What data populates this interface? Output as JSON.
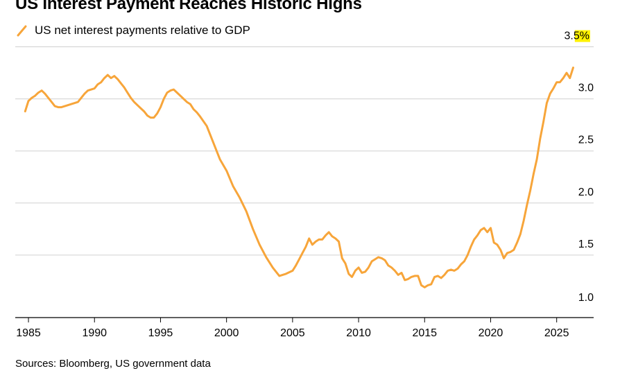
{
  "header": {
    "title": "US Interest Payment Reaches Historic Highs"
  },
  "footer": {
    "source": "Sources: Bloomberg, US government data"
  },
  "colors": {
    "line": "#f7a53a",
    "grid": "#d0d0d0",
    "highlight": "#fff200"
  },
  "chart_data": {
    "type": "line",
    "title": "US Interest Payment Reaches Historic Highs",
    "xlabel": "",
    "ylabel": "",
    "xlim": [
      1984,
      2027.8
    ],
    "ylim": [
      0.9,
      3.55
    ],
    "yaxis_position": "right",
    "grid": true,
    "legend": "top-left",
    "x_ticks": [
      1985,
      1990,
      1995,
      2000,
      2005,
      2010,
      2015,
      2020,
      2025
    ],
    "x_tick_labels": [
      "1985",
      "1990",
      "1995",
      "2000",
      "2005",
      "2010",
      "2015",
      "2020",
      "2025"
    ],
    "y_ticks": [
      1.0,
      1.5,
      2.0,
      2.5,
      3.0,
      3.5
    ],
    "y_tick_labels": [
      "1.0",
      "1.5",
      "2.0",
      "2.5",
      "3.0",
      "3.5%"
    ],
    "series": [
      {
        "name": "US net interest payments relative to GDP",
        "x": [
          1984.75,
          1985.0,
          1985.25,
          1985.5,
          1985.75,
          1986.0,
          1986.25,
          1986.5,
          1986.75,
          1987.0,
          1987.25,
          1987.5,
          1987.75,
          1988.0,
          1988.25,
          1988.5,
          1988.75,
          1989.0,
          1989.25,
          1989.5,
          1989.75,
          1990.0,
          1990.25,
          1990.5,
          1990.75,
          1991.0,
          1991.25,
          1991.5,
          1991.75,
          1992.0,
          1992.25,
          1992.5,
          1992.75,
          1993.0,
          1993.25,
          1993.5,
          1993.75,
          1994.0,
          1994.25,
          1994.5,
          1994.75,
          1995.0,
          1995.25,
          1995.5,
          1995.75,
          1996.0,
          1996.25,
          1996.5,
          1996.75,
          1997.0,
          1997.25,
          1997.5,
          1997.75,
          1998.0,
          1998.5,
          1999.0,
          1999.5,
          2000.0,
          2000.5,
          2001.0,
          2001.5,
          2002.0,
          2002.5,
          2003.0,
          2003.5,
          2004.0,
          2004.5,
          2005.0,
          2005.25,
          2005.5,
          2005.75,
          2006.0,
          2006.25,
          2006.5,
          2006.75,
          2007.0,
          2007.25,
          2007.5,
          2007.75,
          2008.0,
          2008.25,
          2008.5,
          2008.75,
          2009.0,
          2009.25,
          2009.5,
          2009.75,
          2010.0,
          2010.25,
          2010.5,
          2010.75,
          2011.0,
          2011.25,
          2011.5,
          2011.75,
          2012.0,
          2012.25,
          2012.5,
          2012.75,
          2013.0,
          2013.25,
          2013.5,
          2013.75,
          2014.0,
          2014.25,
          2014.5,
          2014.75,
          2015.0,
          2015.25,
          2015.5,
          2015.75,
          2016.0,
          2016.25,
          2016.5,
          2016.75,
          2017.0,
          2017.25,
          2017.5,
          2017.75,
          2018.0,
          2018.25,
          2018.5,
          2018.75,
          2019.0,
          2019.25,
          2019.5,
          2019.75,
          2020.0,
          2020.25,
          2020.5,
          2020.75,
          2021.0,
          2021.25,
          2021.5,
          2021.75,
          2022.0,
          2022.25,
          2022.5,
          2022.75,
          2023.0,
          2023.25,
          2023.5,
          2023.75,
          2024.0,
          2024.25,
          2024.5,
          2024.75,
          2025.0,
          2025.25,
          2025.5,
          2025.75,
          2026.0,
          2026.25
        ],
        "y": [
          2.88,
          2.98,
          3.01,
          3.03,
          3.06,
          3.08,
          3.05,
          3.01,
          2.97,
          2.93,
          2.92,
          2.92,
          2.93,
          2.94,
          2.95,
          2.96,
          2.97,
          3.01,
          3.05,
          3.08,
          3.09,
          3.1,
          3.14,
          3.16,
          3.2,
          3.23,
          3.2,
          3.22,
          3.19,
          3.15,
          3.11,
          3.06,
          3.01,
          2.97,
          2.94,
          2.91,
          2.88,
          2.84,
          2.82,
          2.82,
          2.86,
          2.92,
          3.0,
          3.06,
          3.08,
          3.09,
          3.06,
          3.03,
          3.0,
          2.97,
          2.95,
          2.9,
          2.87,
          2.83,
          2.74,
          2.58,
          2.42,
          2.31,
          2.16,
          2.05,
          1.92,
          1.75,
          1.6,
          1.48,
          1.38,
          1.3,
          1.32,
          1.35,
          1.4,
          1.46,
          1.52,
          1.58,
          1.66,
          1.6,
          1.63,
          1.65,
          1.65,
          1.69,
          1.72,
          1.68,
          1.66,
          1.63,
          1.47,
          1.42,
          1.32,
          1.29,
          1.35,
          1.38,
          1.33,
          1.34,
          1.38,
          1.44,
          1.46,
          1.48,
          1.47,
          1.45,
          1.4,
          1.38,
          1.35,
          1.31,
          1.33,
          1.26,
          1.27,
          1.29,
          1.3,
          1.3,
          1.21,
          1.19,
          1.21,
          1.22,
          1.29,
          1.3,
          1.28,
          1.31,
          1.35,
          1.36,
          1.35,
          1.37,
          1.41,
          1.44,
          1.5,
          1.58,
          1.65,
          1.69,
          1.74,
          1.76,
          1.72,
          1.76,
          1.62,
          1.6,
          1.55,
          1.47,
          1.52,
          1.53,
          1.55,
          1.62,
          1.7,
          1.83,
          1.98,
          2.12,
          2.28,
          2.42,
          2.62,
          2.78,
          2.96,
          3.05,
          3.1,
          3.16,
          3.16,
          3.2,
          3.25,
          3.2,
          3.3
        ]
      }
    ]
  }
}
